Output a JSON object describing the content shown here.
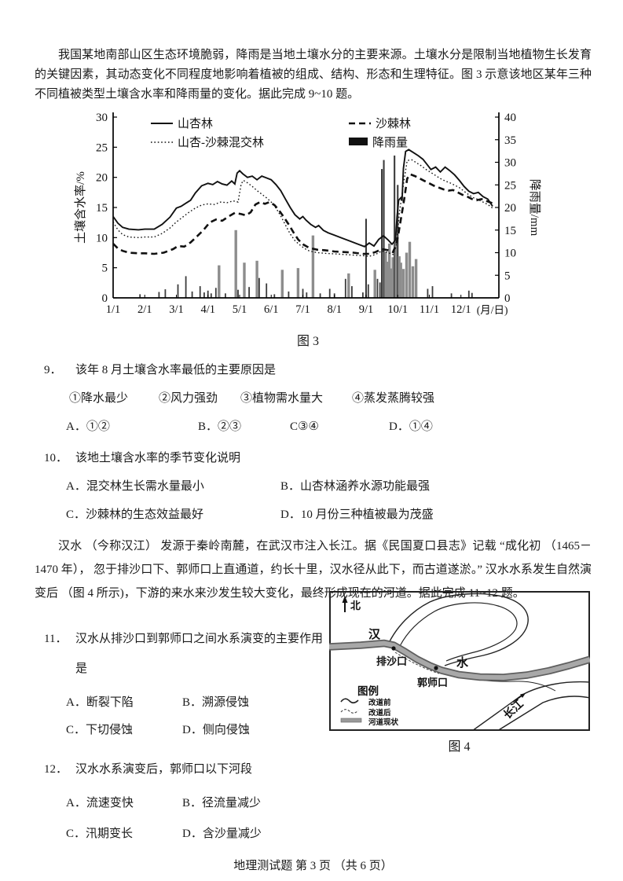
{
  "intro": {
    "text": "我国某地南部山区生态环境脆弱，降雨是当地土壤水分的主要来源。土壤水分是限制当地植物生长发育的关键因素，其动态变化不同程度地影响着植被的组成、结构、形态和生理特征。图 3 示意该地区某年三种不同植被类型土壤含水率和降雨量的变化。据此完成 9~10 题。"
  },
  "chart_data": {
    "type": "line+bar",
    "caption": "图 3",
    "x_axis": {
      "ticks": [
        "1/1",
        "2/1",
        "3/1",
        "4/1",
        "5/1",
        "6/1",
        "7/1",
        "8/1",
        "9/1",
        "10/1",
        "11/1",
        "12/1"
      ],
      "suffix": "(月/日)"
    },
    "y_left": {
      "label": "土壤含水率/%",
      "min": 0,
      "max": 30,
      "step": 5
    },
    "y_right": {
      "label": "降雨量/mm",
      "min": 0,
      "max": 40,
      "step": 5
    },
    "legend_position": "top-inside",
    "grid": false,
    "series": [
      {
        "name": "山杏林",
        "style": "solid",
        "unit": "%",
        "points": [
          [
            0,
            13.5
          ],
          [
            0.15,
            12.4
          ],
          [
            0.3,
            11.7
          ],
          [
            0.5,
            11.4
          ],
          [
            0.8,
            11.3
          ],
          [
            1.0,
            11.4
          ],
          [
            1.3,
            11.4
          ],
          [
            1.55,
            12.2
          ],
          [
            1.8,
            13.4
          ],
          [
            2.0,
            14.9
          ],
          [
            2.15,
            15.2
          ],
          [
            2.3,
            15.7
          ],
          [
            2.45,
            16.2
          ],
          [
            2.6,
            17.4
          ],
          [
            2.8,
            18.6
          ],
          [
            3.0,
            19.0
          ],
          [
            3.15,
            18.8
          ],
          [
            3.3,
            19.3
          ],
          [
            3.45,
            18.9
          ],
          [
            3.6,
            18.7
          ],
          [
            3.75,
            19.4
          ],
          [
            3.85,
            18.9
          ],
          [
            3.92,
            20.7
          ],
          [
            4.0,
            21.1
          ],
          [
            4.1,
            20.6
          ],
          [
            4.25,
            20.0
          ],
          [
            4.4,
            20.2
          ],
          [
            4.55,
            19.6
          ],
          [
            4.7,
            20.2
          ],
          [
            4.85,
            19.9
          ],
          [
            5.0,
            19.6
          ],
          [
            5.15,
            18.8
          ],
          [
            5.3,
            17.8
          ],
          [
            5.45,
            16.4
          ],
          [
            5.6,
            15.0
          ],
          [
            5.75,
            13.8
          ],
          [
            5.9,
            13.1
          ],
          [
            6.0,
            13.5
          ],
          [
            6.1,
            12.9
          ],
          [
            6.25,
            12.2
          ],
          [
            6.4,
            11.7
          ],
          [
            6.5,
            12.0
          ],
          [
            6.65,
            11.2
          ],
          [
            6.8,
            10.8
          ],
          [
            7.0,
            10.4
          ],
          [
            7.25,
            9.9
          ],
          [
            7.5,
            9.4
          ],
          [
            7.75,
            8.9
          ],
          [
            7.95,
            8.5
          ],
          [
            8.1,
            9.1
          ],
          [
            8.25,
            8.6
          ],
          [
            8.4,
            9.7
          ],
          [
            8.55,
            10.3
          ],
          [
            8.7,
            9.6
          ],
          [
            8.82,
            8.9
          ],
          [
            8.93,
            9.6
          ],
          [
            8.98,
            13.5
          ],
          [
            9.03,
            16.2
          ],
          [
            9.1,
            16.6
          ],
          [
            9.14,
            16.3
          ],
          [
            9.18,
            21.5
          ],
          [
            9.25,
            24.3
          ],
          [
            9.35,
            24.6
          ],
          [
            9.5,
            24.1
          ],
          [
            9.65,
            23.6
          ],
          [
            9.8,
            23.0
          ],
          [
            9.95,
            22.0
          ],
          [
            10.05,
            21.3
          ],
          [
            10.2,
            21.7
          ],
          [
            10.35,
            20.9
          ],
          [
            10.5,
            21.7
          ],
          [
            10.65,
            21.1
          ],
          [
            10.8,
            20.4
          ],
          [
            10.95,
            19.5
          ],
          [
            11.1,
            18.5
          ],
          [
            11.25,
            17.7
          ],
          [
            11.4,
            17.3
          ],
          [
            11.55,
            17.5
          ],
          [
            11.7,
            16.8
          ],
          [
            11.85,
            16.4
          ],
          [
            12.0,
            15.2
          ]
        ]
      },
      {
        "name": "山杏-沙棘混交林",
        "style": "dotted",
        "unit": "%",
        "points": [
          [
            0,
            12.6
          ],
          [
            0.15,
            11.3
          ],
          [
            0.3,
            10.5
          ],
          [
            0.5,
            10.1
          ],
          [
            0.8,
            10.0
          ],
          [
            1.0,
            10.1
          ],
          [
            1.3,
            10.1
          ],
          [
            1.55,
            10.7
          ],
          [
            1.8,
            11.6
          ],
          [
            2.0,
            12.6
          ],
          [
            2.2,
            13.4
          ],
          [
            2.4,
            14.2
          ],
          [
            2.6,
            14.9
          ],
          [
            2.8,
            15.4
          ],
          [
            3.0,
            15.6
          ],
          [
            3.2,
            15.5
          ],
          [
            3.4,
            15.9
          ],
          [
            3.6,
            15.8
          ],
          [
            3.8,
            16.1
          ],
          [
            3.95,
            15.9
          ],
          [
            4.05,
            18.9
          ],
          [
            4.12,
            19.5
          ],
          [
            4.25,
            19.1
          ],
          [
            4.4,
            18.5
          ],
          [
            4.55,
            17.8
          ],
          [
            4.7,
            17.2
          ],
          [
            4.85,
            16.6
          ],
          [
            5.0,
            15.9
          ],
          [
            5.15,
            14.9
          ],
          [
            5.3,
            13.6
          ],
          [
            5.45,
            12.1
          ],
          [
            5.6,
            10.6
          ],
          [
            5.75,
            9.5
          ],
          [
            5.9,
            8.8
          ],
          [
            6.05,
            8.2
          ],
          [
            6.2,
            7.8
          ],
          [
            6.45,
            7.5
          ],
          [
            6.7,
            7.4
          ],
          [
            7.0,
            7.3
          ],
          [
            7.3,
            7.2
          ],
          [
            7.6,
            7.1
          ],
          [
            7.9,
            7.0
          ],
          [
            8.1,
            6.9
          ],
          [
            8.3,
            7.2
          ],
          [
            8.5,
            7.8
          ],
          [
            8.7,
            7.5
          ],
          [
            8.85,
            7.2
          ],
          [
            8.95,
            8.5
          ],
          [
            9.0,
            11.0
          ],
          [
            9.05,
            14.0
          ],
          [
            9.12,
            16.5
          ],
          [
            9.2,
            19.5
          ],
          [
            9.3,
            22.8
          ],
          [
            9.45,
            22.9
          ],
          [
            9.6,
            22.4
          ],
          [
            9.75,
            21.9
          ],
          [
            9.9,
            21.3
          ],
          [
            10.05,
            20.8
          ],
          [
            10.2,
            20.3
          ],
          [
            10.35,
            19.8
          ],
          [
            10.5,
            19.4
          ],
          [
            10.65,
            19.1
          ],
          [
            10.8,
            18.7
          ],
          [
            10.95,
            18.3
          ],
          [
            11.1,
            17.7
          ],
          [
            11.25,
            17.1
          ],
          [
            11.4,
            16.6
          ],
          [
            11.55,
            16.3
          ],
          [
            11.7,
            15.9
          ],
          [
            11.85,
            15.5
          ],
          [
            12.0,
            14.9
          ]
        ]
      },
      {
        "name": "沙棘林",
        "style": "dashed",
        "unit": "%",
        "points": [
          [
            0,
            9.0
          ],
          [
            0.15,
            8.2
          ],
          [
            0.3,
            7.8
          ],
          [
            0.5,
            7.5
          ],
          [
            0.8,
            7.4
          ],
          [
            1.0,
            7.4
          ],
          [
            1.3,
            7.3
          ],
          [
            1.6,
            7.5
          ],
          [
            1.9,
            8.1
          ],
          [
            2.05,
            8.6
          ],
          [
            2.25,
            8.5
          ],
          [
            2.45,
            9.2
          ],
          [
            2.65,
            10.2
          ],
          [
            2.85,
            11.2
          ],
          [
            3.05,
            12.5
          ],
          [
            3.25,
            13.0
          ],
          [
            3.45,
            12.8
          ],
          [
            3.65,
            13.5
          ],
          [
            3.85,
            14.1
          ],
          [
            4.05,
            13.9
          ],
          [
            4.2,
            13.7
          ],
          [
            4.35,
            14.2
          ],
          [
            4.5,
            15.5
          ],
          [
            4.65,
            15.9
          ],
          [
            4.8,
            15.6
          ],
          [
            4.95,
            15.9
          ],
          [
            5.1,
            15.4
          ],
          [
            5.25,
            14.5
          ],
          [
            5.4,
            13.4
          ],
          [
            5.55,
            12.2
          ],
          [
            5.7,
            10.9
          ],
          [
            5.85,
            9.7
          ],
          [
            6.0,
            8.9
          ],
          [
            6.2,
            8.3
          ],
          [
            6.45,
            8.0
          ],
          [
            6.7,
            7.9
          ],
          [
            7.0,
            7.7
          ],
          [
            7.3,
            7.6
          ],
          [
            7.6,
            7.5
          ],
          [
            7.9,
            7.3
          ],
          [
            8.1,
            7.3
          ],
          [
            8.3,
            7.6
          ],
          [
            8.5,
            8.1
          ],
          [
            8.7,
            7.9
          ],
          [
            8.85,
            7.6
          ],
          [
            8.95,
            8.8
          ],
          [
            9.02,
            10.5
          ],
          [
            9.1,
            13.0
          ],
          [
            9.2,
            16.2
          ],
          [
            9.3,
            19.8
          ],
          [
            9.4,
            20.5
          ],
          [
            9.55,
            20.2
          ],
          [
            9.7,
            19.8
          ],
          [
            9.85,
            19.4
          ],
          [
            10.0,
            19.0
          ],
          [
            10.15,
            18.6
          ],
          [
            10.3,
            18.3
          ],
          [
            10.45,
            18.0
          ],
          [
            10.6,
            17.8
          ],
          [
            10.75,
            17.9
          ],
          [
            10.9,
            17.5
          ],
          [
            11.05,
            17.1
          ],
          [
            11.2,
            16.8
          ],
          [
            11.35,
            16.4
          ],
          [
            11.5,
            16.2
          ],
          [
            11.65,
            16.4
          ],
          [
            11.8,
            16.1
          ],
          [
            12.0,
            15.7
          ]
        ]
      }
    ],
    "rain": {
      "name": "降雨量",
      "unit": "mm",
      "points": [
        [
          0.85,
          0.8
        ],
        [
          1.45,
          1.3
        ],
        [
          1.65,
          1.9
        ],
        [
          2.05,
          3.0
        ],
        [
          2.3,
          4.8
        ],
        [
          2.5,
          1.4
        ],
        [
          2.75,
          2.6
        ],
        [
          2.88,
          1.2
        ],
        [
          3.0,
          1.6
        ],
        [
          3.1,
          1.0
        ],
        [
          3.25,
          2.2
        ],
        [
          3.35,
          7.2
        ],
        [
          3.55,
          1.0
        ],
        [
          3.88,
          15.0
        ],
        [
          3.95,
          1.8
        ],
        [
          4.15,
          7.8
        ],
        [
          4.3,
          2.4
        ],
        [
          4.55,
          8.2
        ],
        [
          4.62,
          4.4
        ],
        [
          4.85,
          3.2
        ],
        [
          5.1,
          0.8
        ],
        [
          5.35,
          6.2
        ],
        [
          5.55,
          1.4
        ],
        [
          5.85,
          6.6
        ],
        [
          6.0,
          2.0
        ],
        [
          6.12,
          1.2
        ],
        [
          6.32,
          13.8
        ],
        [
          6.55,
          1.0
        ],
        [
          6.85,
          2.0
        ],
        [
          7.0,
          1.0
        ],
        [
          7.35,
          4.2
        ],
        [
          7.45,
          5.4
        ],
        [
          7.55,
          2.6
        ],
        [
          7.9,
          1.2
        ],
        [
          8.0,
          17.5
        ],
        [
          8.07,
          3.0
        ],
        [
          8.28,
          6.2
        ],
        [
          8.36,
          4.2
        ],
        [
          8.44,
          3.4
        ],
        [
          8.5,
          28.5
        ],
        [
          8.56,
          30.5
        ],
        [
          8.62,
          10.2
        ],
        [
          8.68,
          8.0
        ],
        [
          8.74,
          12.0
        ],
        [
          8.8,
          6.5
        ],
        [
          8.85,
          9.0
        ],
        [
          8.9,
          31.5
        ],
        [
          8.95,
          12.5
        ],
        [
          9.0,
          25.0
        ],
        [
          9.05,
          9.2
        ],
        [
          9.1,
          7.8
        ],
        [
          9.18,
          6.4
        ],
        [
          9.28,
          10.0
        ],
        [
          9.38,
          12.4
        ],
        [
          9.48,
          7.0
        ],
        [
          9.58,
          8.6
        ],
        [
          9.95,
          2.0
        ],
        [
          10.1,
          2.6
        ],
        [
          10.7,
          1.0
        ],
        [
          11.25,
          1.6
        ],
        [
          11.35,
          1.1
        ]
      ]
    }
  },
  "q9": {
    "num": "9．",
    "stem": "该年 8 月土壤含水率最低的主要原因是",
    "items": [
      "①降水最少",
      "②风力强劲",
      "③植物需水量大",
      "④蒸发蒸腾较强"
    ],
    "options": [
      "A．①②",
      "B．②③",
      "C③④",
      "D．①④"
    ]
  },
  "q10": {
    "num": "10．",
    "stem": "该地土壤含水率的季节变化说明",
    "options": [
      "A．混交林生长需水量最小",
      "B．山杏林涵养水源功能最强",
      "C．沙棘林的生态效益最好",
      "D．10 月份三种植被最为茂盛"
    ]
  },
  "hanshui_para": "汉水 （今称汉江） 发源于秦岭南麓，在武汉市注入长江。据《民国夏口县志》记载 “成化初 （1465－1470 年）， 忽于排沙口下、郭师口上直通道，约长十里，汉水径从此下，而古道遂淤。” 汉水水系发生自然演变后 （图 4 所示)，下游的来水来沙发生较大变化，最终形成现在的河道。据此完成 11~12 题。",
  "map": {
    "caption": "图 4",
    "north_label": "北",
    "labels": {
      "han": "汉",
      "shui": "水",
      "changjiang": "长江"
    },
    "points": {
      "paishakou": "排沙口",
      "guoshikou": "郭师口"
    },
    "legend": {
      "title": "图例",
      "before": "改道前",
      "after": "改道后",
      "current": "河道现状"
    }
  },
  "q11": {
    "num": "11．",
    "stem": "汉水从排沙口到郭师口之间水系演变的主要作用是",
    "options": [
      "A．断裂下陷",
      "B．溯源侵蚀",
      "C．下切侵蚀",
      "D．侧向侵蚀"
    ]
  },
  "q12": {
    "num": "12．",
    "stem": "汉水水系演变后，郭师口以下河段",
    "options": [
      "A．流速变快",
      "B．径流量减少",
      "C．汛期变长",
      "D．含沙量减少"
    ]
  },
  "footer": "地理测试题 第 3 页  （共 6 页）"
}
